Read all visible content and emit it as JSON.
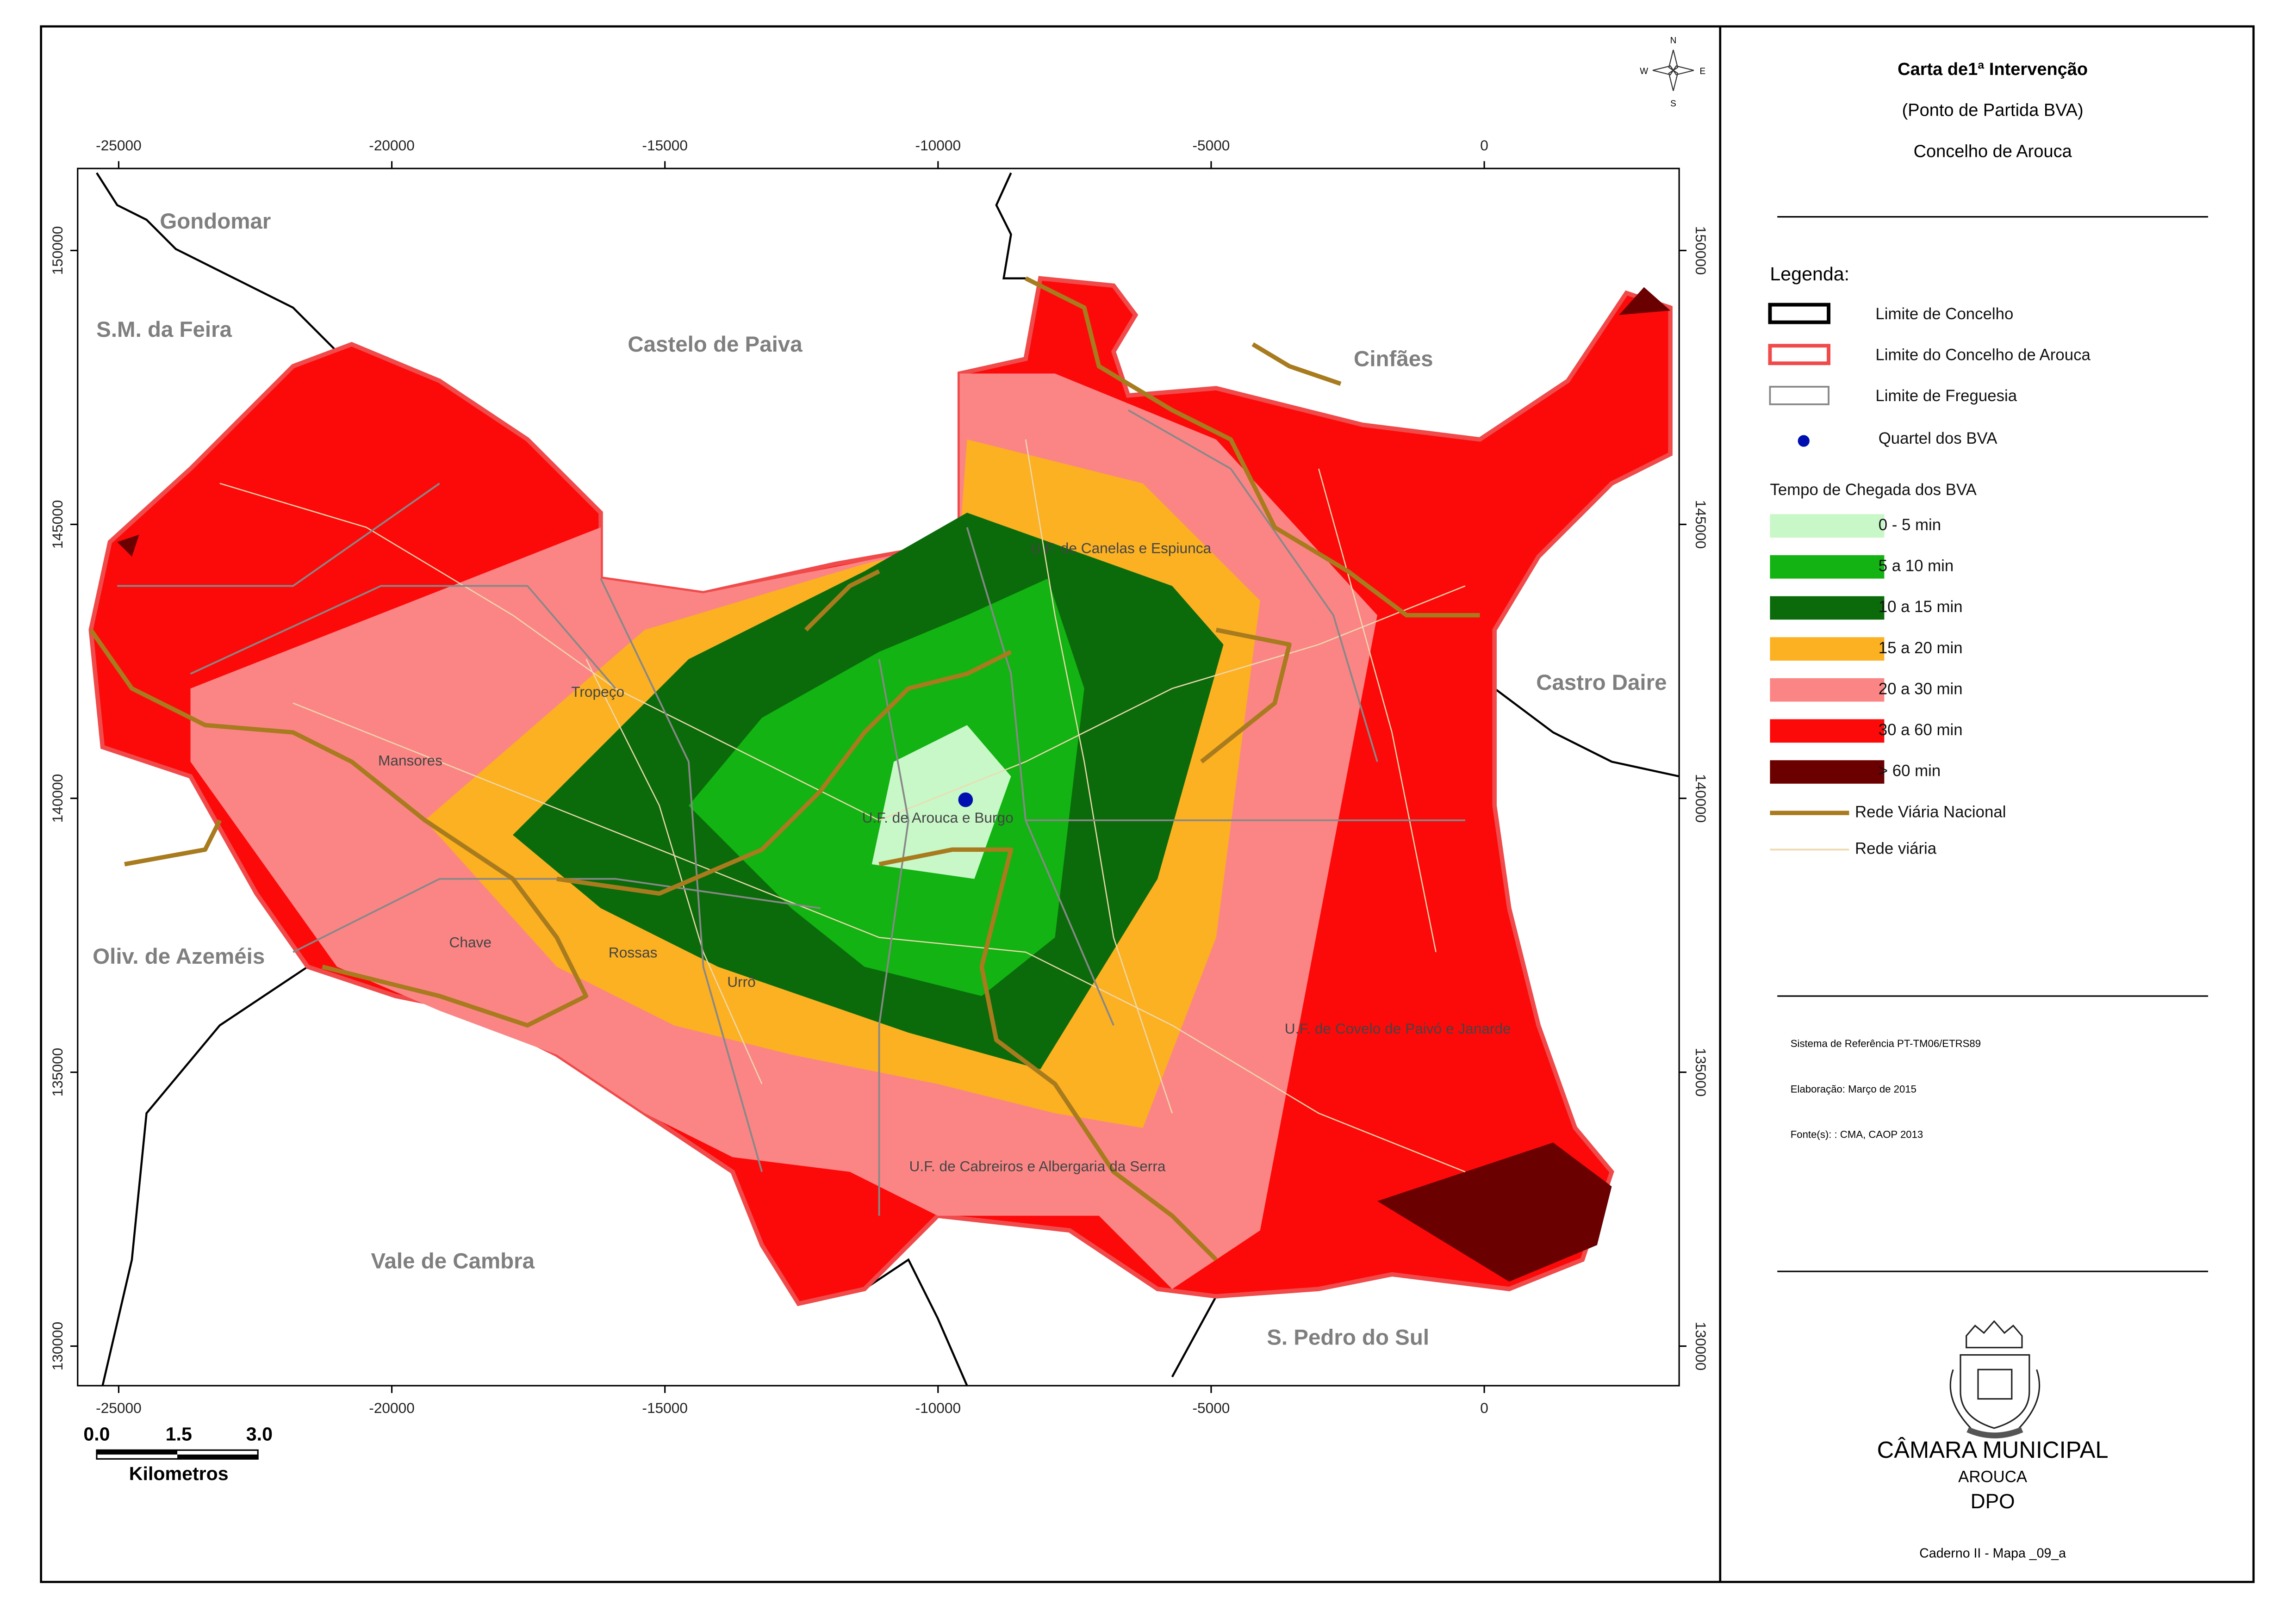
{
  "header": {
    "title": "Carta de1ª Intervenção",
    "subtitle": "(Ponto de Partida BVA)",
    "place": "Concelho de Arouca"
  },
  "legend": {
    "title": "Legenda:",
    "boundaries": [
      "Limite  de Concelho",
      "Limite  do Concelho de Arouca",
      "Limite  de Freguesia"
    ],
    "marker": "Quartel dos BVA",
    "time_title": "Tempo de Chegada dos BVA",
    "classes": [
      {
        "label": "0 - 5 min",
        "color": "#c8f7c8"
      },
      {
        "label": "5 a 10 min",
        "color": "#12b312"
      },
      {
        "label": "10 a 15 min",
        "color": "#0b6b0b"
      },
      {
        "label": "15 a 20 min",
        "color": "#fbb122"
      },
      {
        "label": "20 a 30 min",
        "color": "#fb8585"
      },
      {
        "label": "30 a 60 min",
        "color": "#fc0a0a"
      },
      {
        "label": "> 60 min",
        "color": "#6b0000"
      }
    ],
    "roads": [
      "Rede Viária Nacional",
      "Rede viária"
    ]
  },
  "map": {
    "x_ticks": [
      -25000,
      -20000,
      -15000,
      -10000,
      -5000,
      0
    ],
    "y_ticks": [
      150000,
      145000,
      140000,
      135000,
      130000
    ],
    "compass": [
      "N",
      "E",
      "S",
      "W"
    ],
    "neighbours": [
      "Gondomar",
      "S.M. da Feira",
      "Castelo de Paiva",
      "Cinfães",
      "Castro Daire",
      "Oliv. de Azeméis",
      "Vale de Cambra",
      "S. Pedro do Sul"
    ],
    "parishes": [
      "Tropeço",
      "Mansores",
      "Chave",
      "Rossas",
      "Urrô",
      "U.F. de Arouca e Burgo",
      "U.F. de Canelas e Espiunca",
      "U.F. de Covelo de Paivó e Janarde",
      "U.F. de Cabreiros e Albergaria da Serra"
    ],
    "scale": {
      "labels": [
        "0.0",
        "1.5",
        "3.0"
      ],
      "unit": "Kilometros"
    }
  },
  "info": [
    "Sistema de Referência PT-TM06/ETRS89",
    "Elaboração: Março de 2015",
    "Fonte(s):  : CMA, CAOP 2013"
  ],
  "footer": {
    "org": "CÂMARA MUNICIPAL",
    "town": "AROUCA",
    "dept": "DPO",
    "sheet": "Caderno II - Mapa _09_a"
  }
}
